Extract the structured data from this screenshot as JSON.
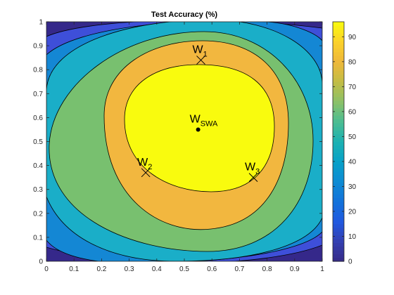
{
  "chart_data": {
    "type": "contour",
    "title": "Test Accuracy (%)",
    "xlim": [
      0,
      1
    ],
    "ylim": [
      0,
      1
    ],
    "x_ticks": [
      "0",
      "0.1",
      "0.2",
      "0.3",
      "0.4",
      "0.5",
      "0.6",
      "0.7",
      "0.8",
      "0.9",
      "1"
    ],
    "y_ticks": [
      "0",
      "0.1",
      "0.2",
      "0.3",
      "0.4",
      "0.5",
      "0.6",
      "0.7",
      "0.8",
      "0.9",
      "1"
    ],
    "colorbar": {
      "range": [
        0,
        96
      ],
      "ticks": [
        "0",
        "10",
        "20",
        "30",
        "40",
        "50",
        "60",
        "70",
        "80",
        "90"
      ],
      "colormap": "parula"
    },
    "contour_levels": [
      {
        "value": 90,
        "color": "#f9fb0e"
      },
      {
        "value": 73,
        "color": "#f2b73f"
      },
      {
        "value": 55,
        "color": "#78c06f"
      },
      {
        "value": 40,
        "color": "#1aaec8"
      },
      {
        "value": 23,
        "color": "#1487d4"
      },
      {
        "value": 10,
        "color": "#3e4fd9"
      },
      {
        "value": 0,
        "color": "#35288a"
      }
    ],
    "points": [
      {
        "label": "W",
        "subscript": "1",
        "x": 0.56,
        "y": 0.84,
        "marker": "x"
      },
      {
        "label": "W",
        "subscript": "2",
        "x": 0.36,
        "y": 0.37,
        "marker": "x"
      },
      {
        "label": "W",
        "subscript": "3",
        "x": 0.75,
        "y": 0.35,
        "marker": "x"
      },
      {
        "label": "W",
        "subscript": "SWA",
        "x": 0.55,
        "y": 0.55,
        "marker": "dot"
      }
    ],
    "grid": false
  }
}
